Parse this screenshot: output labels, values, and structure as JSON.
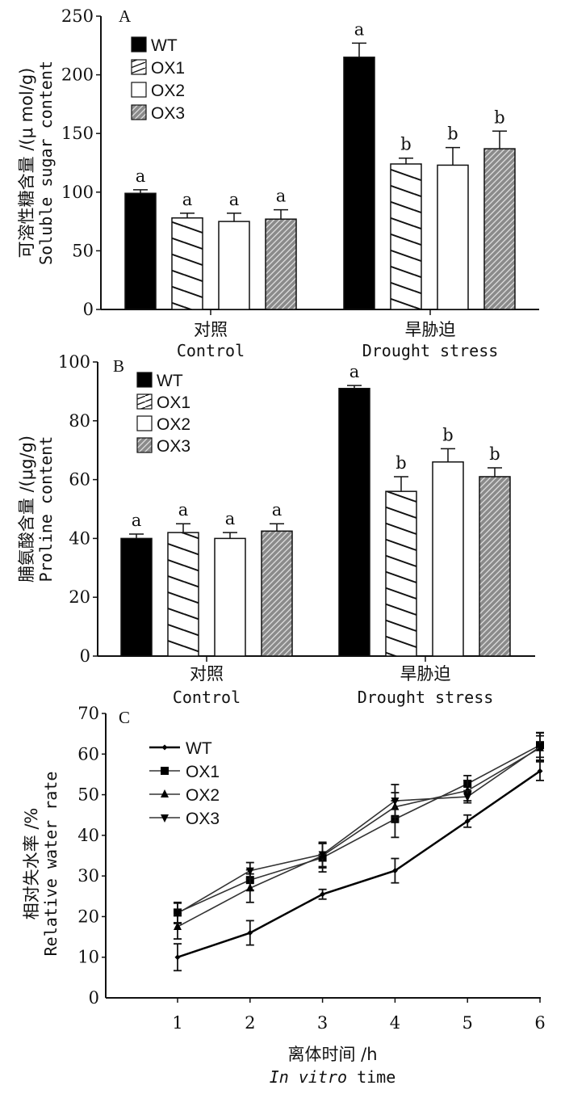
{
  "chart_data": [
    {
      "type": "bar",
      "panel": "A",
      "title": "",
      "ylabel_cn": "可溶性糖含量 /(μ mol/g)",
      "ylabel": "Soluble sugar content",
      "xlabel": "",
      "ylim": [
        0,
        250
      ],
      "yticks": [
        0,
        50,
        100,
        150,
        200,
        250
      ],
      "categories": [
        {
          "cn": "对照",
          "en": "Control"
        },
        {
          "cn": "旱胁迫",
          "en": "Drought stress"
        }
      ],
      "legend_position": "top-left",
      "series": [
        {
          "name": "WT",
          "pattern": "solid-black",
          "values": [
            99,
            215
          ],
          "errors": [
            3,
            12
          ],
          "significance": [
            "a",
            "a"
          ]
        },
        {
          "name": "OX1",
          "pattern": "wide-diagonal-hatch",
          "values": [
            78,
            124
          ],
          "errors": [
            4,
            5
          ],
          "significance": [
            "a",
            "b"
          ]
        },
        {
          "name": "OX2",
          "pattern": "white",
          "values": [
            75,
            123
          ],
          "errors": [
            7,
            15
          ],
          "significance": [
            "a",
            "b"
          ]
        },
        {
          "name": "OX3",
          "pattern": "fine-gray-hatch",
          "values": [
            77,
            137
          ],
          "errors": [
            8,
            15
          ],
          "significance": [
            "a",
            "b"
          ]
        }
      ]
    },
    {
      "type": "bar",
      "panel": "B",
      "title": "",
      "ylabel_cn": "脯氨酸含量 /(μg/g)",
      "ylabel": "Proline content",
      "xlabel": "",
      "ylim": [
        0,
        100
      ],
      "yticks": [
        0,
        20,
        40,
        60,
        80,
        100
      ],
      "categories": [
        {
          "cn": "对照",
          "en": "Control"
        },
        {
          "cn": "旱胁迫",
          "en": "Drought stress"
        }
      ],
      "legend_position": "top-left",
      "series": [
        {
          "name": "WT",
          "pattern": "solid-black",
          "values": [
            40,
            91
          ],
          "errors": [
            1.5,
            1
          ],
          "significance": [
            "a",
            "a"
          ]
        },
        {
          "name": "OX1",
          "pattern": "wide-diagonal-hatch",
          "values": [
            42,
            56
          ],
          "errors": [
            3,
            5
          ],
          "significance": [
            "a",
            "b"
          ]
        },
        {
          "name": "OX2",
          "pattern": "white",
          "values": [
            40,
            66
          ],
          "errors": [
            2,
            4.5
          ],
          "significance": [
            "a",
            "b"
          ]
        },
        {
          "name": "OX3",
          "pattern": "fine-gray-hatch",
          "values": [
            42.5,
            61
          ],
          "errors": [
            2.5,
            3
          ],
          "significance": [
            "a",
            "b"
          ]
        }
      ]
    },
    {
      "type": "line",
      "panel": "C",
      "title": "",
      "ylabel_cn": "相对失水率 /%",
      "ylabel": "Relative water rate",
      "xlabel_cn": "离体时间 /h",
      "xlabel_italic": "In vitro",
      "xlabel_rest": " time",
      "x": [
        1,
        2,
        3,
        4,
        5,
        6
      ],
      "xlim": [
        0,
        6
      ],
      "ylim": [
        0,
        70
      ],
      "yticks": [
        0,
        10,
        20,
        30,
        40,
        50,
        60,
        70
      ],
      "legend_position": "top-left",
      "series": [
        {
          "name": "WT",
          "marker": "diamond",
          "values": [
            10,
            16,
            25.5,
            31.3,
            43.5,
            55.8
          ],
          "errors": [
            3.3,
            3,
            1.2,
            3,
            1.5,
            2.3
          ]
        },
        {
          "name": "OX1",
          "marker": "square",
          "values": [
            21,
            29,
            34.5,
            44,
            52.7,
            62.2
          ],
          "errors": [
            2.5,
            2.5,
            3.5,
            4.5,
            2,
            3
          ]
        },
        {
          "name": "OX2",
          "marker": "triangle-up",
          "values": [
            17.5,
            27,
            35,
            47,
            51,
            61.5
          ],
          "errors": [
            3,
            3.5,
            3,
            3.5,
            2.5,
            3
          ]
        },
        {
          "name": "OX3",
          "marker": "triangle-down",
          "values": [
            20.8,
            31.3,
            35.3,
            48.5,
            49.5,
            61.8
          ],
          "errors": [
            2.5,
            2,
            3,
            4,
            1.5,
            3.5
          ]
        }
      ]
    }
  ]
}
